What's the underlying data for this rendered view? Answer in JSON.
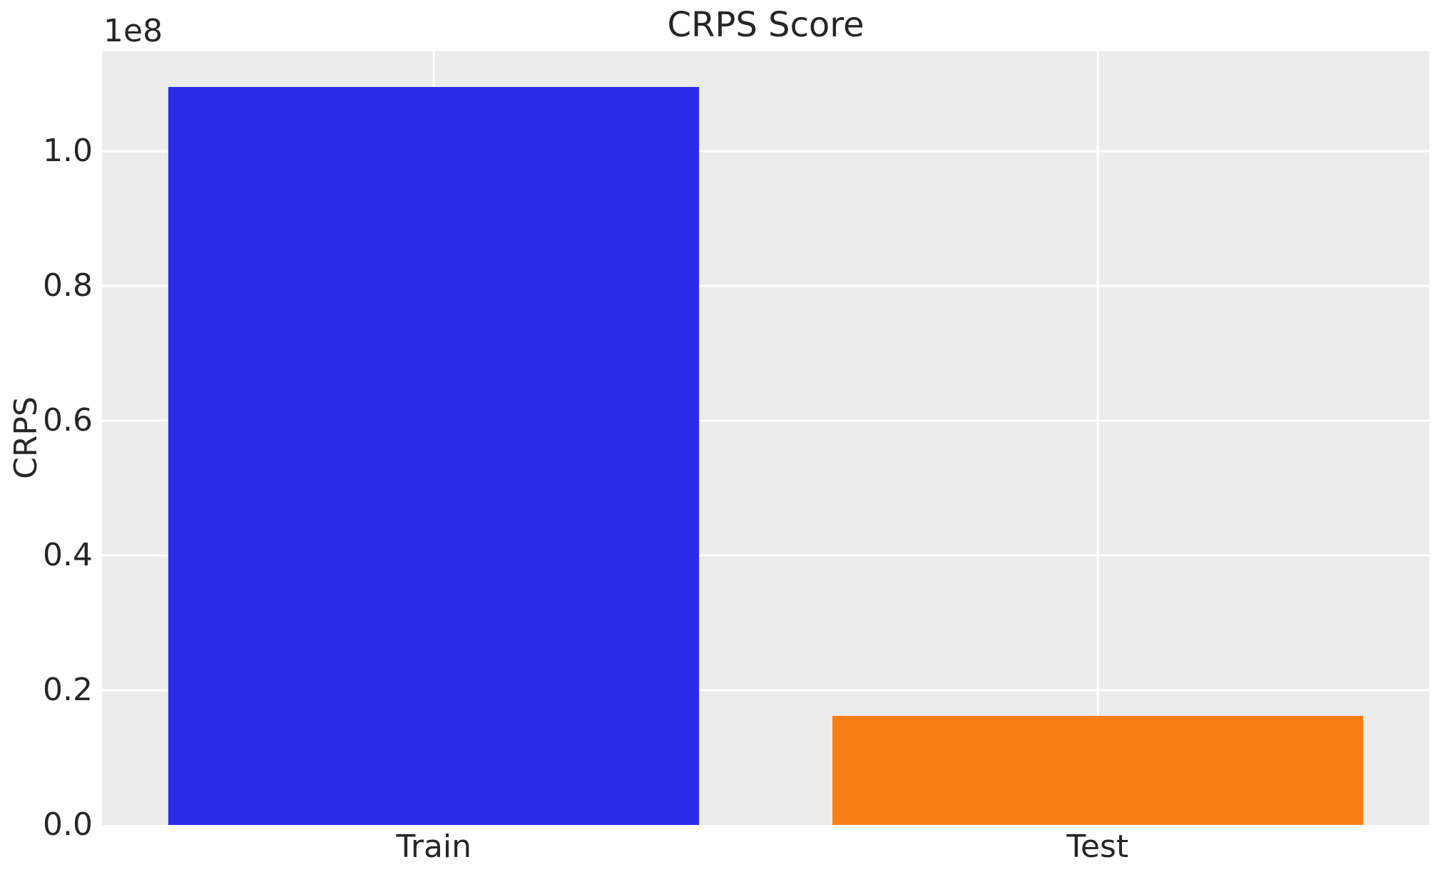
{
  "chart_data": {
    "type": "bar",
    "title": "CRPS Score",
    "xlabel": "",
    "ylabel": "CRPS",
    "scale_label": "1e8",
    "categories": [
      "Train",
      "Test"
    ],
    "values": [
      109500000,
      16200000
    ],
    "bar_colors": [
      "#2b2be8",
      "#f97e13"
    ],
    "ylim": [
      0,
      114800000
    ],
    "yticks": [
      {
        "value": 0,
        "label": "0.0"
      },
      {
        "value": 20000000,
        "label": "0.2"
      },
      {
        "value": 40000000,
        "label": "0.4"
      },
      {
        "value": 60000000,
        "label": "0.6"
      },
      {
        "value": 80000000,
        "label": "0.8"
      },
      {
        "value": 100000000,
        "label": "1.0"
      }
    ],
    "grid": true,
    "legend": null,
    "panel_background": "#ececec",
    "gridline_color": "#ffffff",
    "text_color": "#262626"
  }
}
